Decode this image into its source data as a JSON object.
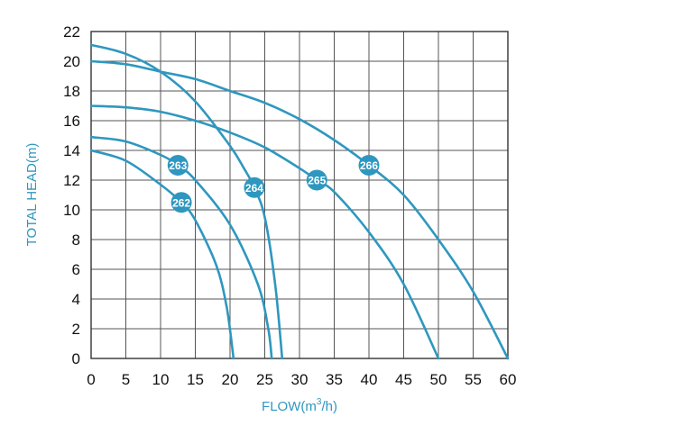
{
  "chart_data": {
    "type": "line",
    "title": "",
    "xlabel": "FLOW(m",
    "xlabel_sup": "3",
    "xlabel_end": "/h)",
    "ylabel": "TOTAL HEAD(m)",
    "xlim": [
      0,
      60
    ],
    "ylim": [
      0,
      22
    ],
    "x_ticks": [
      0,
      5,
      10,
      15,
      20,
      25,
      30,
      35,
      40,
      45,
      50,
      55,
      60
    ],
    "y_ticks": [
      0,
      2,
      4,
      6,
      8,
      10,
      12,
      14,
      16,
      18,
      20,
      22
    ],
    "grid": true,
    "line_color": "#2f97bf",
    "grid_color": "#555555",
    "series": [
      {
        "name": "262",
        "label_at": [
          13,
          10.5
        ],
        "x": [
          0,
          5,
          10,
          13,
          15,
          18,
          19.5,
          20.5
        ],
        "y": [
          14,
          13.3,
          11.7,
          10.5,
          9.3,
          6.3,
          3.5,
          0
        ]
      },
      {
        "name": "263",
        "label_at": [
          12.5,
          13
        ],
        "x": [
          0,
          5,
          10,
          12.5,
          15,
          20,
          24,
          25.5,
          26
        ],
        "y": [
          14.9,
          14.6,
          13.7,
          13,
          12,
          9,
          5,
          2,
          0
        ]
      },
      {
        "name": "264",
        "label_at": [
          23.5,
          11.5
        ],
        "x": [
          0,
          5,
          10,
          15,
          20,
          22,
          23.5,
          25,
          26.5,
          27.5
        ],
        "y": [
          21.1,
          20.5,
          19.3,
          17.3,
          14.3,
          12.8,
          11.5,
          9.5,
          5,
          0
        ]
      },
      {
        "name": "265",
        "label_at": [
          32.5,
          12
        ],
        "x": [
          0,
          5,
          10,
          15,
          20,
          25,
          30,
          32.5,
          35,
          40,
          45,
          50
        ],
        "y": [
          17,
          16.9,
          16.6,
          16,
          15.2,
          14.2,
          12.8,
          12,
          11.2,
          8.5,
          5,
          0
        ]
      },
      {
        "name": "266",
        "label_at": [
          40,
          13
        ],
        "x": [
          0,
          5,
          10,
          15,
          20,
          25,
          30,
          35,
          40,
          45,
          50,
          55,
          60
        ],
        "y": [
          20,
          19.8,
          19.3,
          18.8,
          18,
          17.2,
          16.1,
          14.7,
          13,
          11,
          8,
          4.5,
          0
        ]
      }
    ]
  }
}
